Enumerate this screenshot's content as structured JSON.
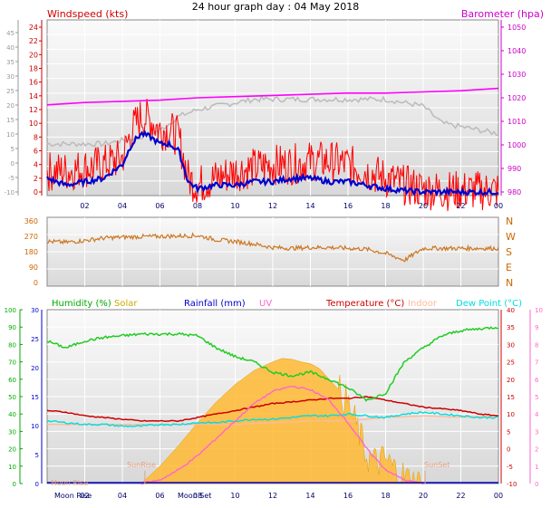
{
  "title": "24 hour graph day : 04 May 2018",
  "chart_data": [
    {
      "type": "line",
      "name_panel": "wind-barometer",
      "x_ticks": [
        "02",
        "04",
        "06",
        "08",
        "10",
        "12",
        "14",
        "16",
        "18",
        "20",
        "22",
        "00"
      ],
      "left_axis": {
        "label": "Windspeed (kts)",
        "color": "#cc0000",
        "range": [
          0,
          25
        ],
        "ticks": [
          "0",
          "2",
          "4",
          "6",
          "8",
          "10",
          "12",
          "14",
          "16",
          "18",
          "20",
          "22",
          "24"
        ]
      },
      "outer_left_axis": {
        "ticks": [
          "-10",
          "-5",
          "0",
          "5",
          "10",
          "15",
          "20",
          "25",
          "30",
          "35",
          "40",
          "45"
        ]
      },
      "right_axis": {
        "label": "Barometer (hpa)",
        "color": "#cc00cc",
        "range": [
          975,
          1050
        ],
        "ticks": [
          "980",
          "990",
          "1000",
          "1010",
          "1020",
          "1030",
          "1040",
          "1050"
        ]
      },
      "series": [
        {
          "name": "Windspeed (kts)",
          "color": "#ff0000",
          "style": "gust-fill",
          "x": [
            0,
            1,
            2,
            3,
            4,
            4.5,
            5,
            5.5,
            6,
            6.5,
            7,
            7.5,
            8,
            9,
            10,
            11,
            12,
            13,
            14,
            15,
            16,
            17,
            18,
            19,
            20,
            21,
            22,
            23,
            24
          ],
          "values": [
            3,
            3,
            3.5,
            4,
            5,
            9,
            11,
            10.5,
            9,
            9,
            8,
            2,
            1,
            2,
            3,
            3.5,
            4,
            4,
            4.5,
            4.5,
            4,
            3,
            2,
            1,
            0.4,
            0.2,
            0.2,
            0.2,
            0.2
          ]
        },
        {
          "name": "Average wind",
          "color": "#0000cc",
          "x": [
            0,
            1,
            2,
            3,
            4,
            4.5,
            5,
            5.5,
            6,
            6.5,
            7,
            7.5,
            8,
            9,
            10,
            11,
            12,
            13,
            14,
            15,
            16,
            17,
            18,
            19,
            20,
            21,
            22,
            23,
            24
          ],
          "values": [
            2,
            1,
            1.5,
            2,
            4,
            7,
            8.5,
            8,
            7,
            7,
            6,
            1.5,
            0.5,
            1,
            1,
            1.5,
            1.5,
            2,
            2,
            1.5,
            1.5,
            1,
            0.5,
            0.2,
            0,
            0,
            0,
            0,
            0
          ]
        },
        {
          "name": "Wind (secondary)",
          "color": "#bbbbbb",
          "x": [
            0,
            1,
            2,
            3,
            4,
            5,
            6,
            7,
            8,
            9,
            10,
            11,
            12,
            13,
            14,
            15,
            16,
            17,
            18,
            19,
            20,
            21,
            22,
            23,
            24
          ],
          "values": [
            7,
            7,
            7,
            7,
            7.5,
            8,
            9,
            11,
            12,
            12.5,
            13,
            13.5,
            13.5,
            13.5,
            13.5,
            13.5,
            13.5,
            13.5,
            13.5,
            13,
            12.5,
            10,
            9.5,
            9,
            8.5
          ]
        },
        {
          "name": "Barometer (hpa)",
          "color": "#ff00ff",
          "axis": "right",
          "x": [
            0,
            2,
            4,
            6,
            8,
            10,
            12,
            14,
            16,
            18,
            20,
            22,
            24
          ],
          "values": [
            1017,
            1018,
            1018.5,
            1019,
            1020,
            1020.5,
            1021,
            1021.5,
            1022,
            1022,
            1022.5,
            1023,
            1024
          ]
        }
      ]
    },
    {
      "type": "line",
      "name_panel": "wind-direction",
      "left_axis": {
        "range": [
          0,
          360
        ],
        "ticks": [
          "0",
          "90",
          "180",
          "270",
          "360"
        ]
      },
      "right_axis": {
        "ticks": [
          "N",
          "W",
          "S",
          "E",
          "N"
        ],
        "reversed": true
      },
      "series": [
        {
          "name": "Wind direction",
          "color": "#cc7722",
          "x": [
            0,
            1,
            2,
            3,
            4,
            5,
            6,
            7,
            8,
            9,
            10,
            11,
            12,
            13,
            14,
            15,
            16,
            17,
            18,
            19,
            20,
            21,
            22,
            23,
            24
          ],
          "values": [
            240,
            235,
            245,
            260,
            265,
            268,
            270,
            272,
            275,
            250,
            240,
            225,
            205,
            200,
            205,
            205,
            200,
            195,
            170,
            130,
            200,
            200,
            200,
            200,
            200
          ]
        }
      ]
    },
    {
      "type": "area",
      "name_panel": "temperature-humidity",
      "x_ticks": [
        "02",
        "04",
        "06",
        "08",
        "10",
        "12",
        "14",
        "16",
        "18",
        "20",
        "22",
        "00"
      ],
      "x_annotations": [
        "Moon Rise",
        "SunRise",
        "SunSet",
        "Moon Set"
      ],
      "left_axis_humidity": {
        "label": "Humidity (%)",
        "color": "#00aa00",
        "range": [
          0,
          100
        ],
        "ticks": [
          "0",
          "10",
          "20",
          "30",
          "40",
          "50",
          "60",
          "70",
          "80",
          "90",
          "100"
        ]
      },
      "left_axis_rain": {
        "ticks": [
          "0",
          "5",
          "10",
          "15",
          "20",
          "25",
          "30"
        ]
      },
      "right_axis_temp": {
        "label": "Temperature (°C)",
        "color": "#cc0000",
        "range": [
          -10,
          40
        ],
        "ticks": [
          "-10",
          "-5",
          "0",
          "5",
          "10",
          "15",
          "20",
          "25",
          "30",
          "35",
          "40"
        ]
      },
      "right_axis_uv": {
        "range": [
          0,
          10
        ],
        "ticks": [
          "0",
          "1",
          "2",
          "3",
          "4",
          "5",
          "6",
          "7",
          "8",
          "9",
          "10"
        ]
      },
      "legend": [
        "Humidity (%)",
        "Solar",
        "Rainfall (mm)",
        "UV",
        "Temperature (°C)",
        "Indoor",
        "Dew Point (°C)"
      ],
      "series": [
        {
          "name": "Humidity (%)",
          "color": "#22cc22",
          "x": [
            0,
            1,
            2,
            3,
            4,
            5,
            6,
            7,
            8,
            9,
            10,
            11,
            12,
            13,
            14,
            15,
            16,
            17,
            18,
            19,
            20,
            21,
            22,
            23,
            24
          ],
          "values": [
            82,
            78,
            82,
            84,
            85,
            86,
            86,
            86,
            85,
            78,
            73,
            70,
            64,
            62,
            64,
            60,
            55,
            48,
            52,
            70,
            78,
            85,
            88,
            89,
            90
          ]
        },
        {
          "name": "Indoor",
          "color": "#ffbb99",
          "x": [
            0,
            2,
            4,
            6,
            8,
            10,
            12,
            14,
            16,
            18,
            20,
            22,
            24
          ],
          "values": [
            7,
            7,
            7,
            7,
            7,
            7,
            7.5,
            8,
            8,
            9,
            9.5,
            9,
            9.5
          ]
        },
        {
          "name": "Temperature (°C)",
          "color": "#cc0000",
          "x": [
            0,
            1,
            2,
            3,
            4,
            5,
            6,
            7,
            8,
            9,
            10,
            11,
            12,
            13,
            14,
            15,
            16,
            17,
            18,
            19,
            20,
            21,
            22,
            23,
            24
          ],
          "values": [
            11,
            10.5,
            9.5,
            9,
            8.5,
            8,
            8,
            8,
            9,
            10,
            11,
            12,
            13,
            13.5,
            14,
            14.5,
            14.5,
            15,
            14,
            13,
            12,
            11.5,
            11,
            10,
            9.5
          ]
        },
        {
          "name": "Dew Point (°C)",
          "color": "#00dddd",
          "x": [
            0,
            1,
            2,
            3,
            4,
            5,
            6,
            7,
            8,
            9,
            10,
            11,
            12,
            13,
            14,
            15,
            16,
            17,
            18,
            19,
            20,
            21,
            22,
            23,
            24
          ],
          "values": [
            8,
            7.5,
            7,
            7,
            6.5,
            6.5,
            7,
            7,
            7.5,
            7.5,
            8,
            8.5,
            8.5,
            9,
            9.5,
            9.5,
            10,
            9.5,
            9,
            10,
            10.5,
            10,
            9.5,
            9,
            9
          ]
        },
        {
          "name": "Solar",
          "color": "#ffb833",
          "style": "area",
          "x": [
            5,
            6,
            7,
            8,
            9,
            10,
            11,
            12,
            12.5,
            13,
            13.5,
            14,
            14.5,
            15,
            15.5,
            16,
            16.5,
            17,
            17.5,
            18,
            18.5,
            19,
            19.5,
            20
          ],
          "values": [
            0,
            100,
            220,
            350,
            470,
            570,
            650,
            700,
            720,
            715,
            700,
            690,
            660,
            600,
            540,
            460,
            320,
            160,
            120,
            140,
            80,
            40,
            10,
            0
          ]
        },
        {
          "name": "UV",
          "color": "#ff66cc",
          "axis": "uv",
          "x": [
            5,
            6,
            7,
            8,
            9,
            10,
            11,
            12,
            13,
            14,
            15,
            16,
            17,
            18,
            19,
            20
          ],
          "values": [
            0,
            0.2,
            0.8,
            1.6,
            2.6,
            3.6,
            4.6,
            5.3,
            5.6,
            5.4,
            4.8,
            3.5,
            2,
            0.8,
            0.2,
            0
          ]
        },
        {
          "name": "Rainfall (mm)",
          "color": "#0000cc",
          "axis": "rain",
          "x": [
            0,
            24
          ],
          "values": [
            0,
            0
          ]
        }
      ]
    }
  ]
}
